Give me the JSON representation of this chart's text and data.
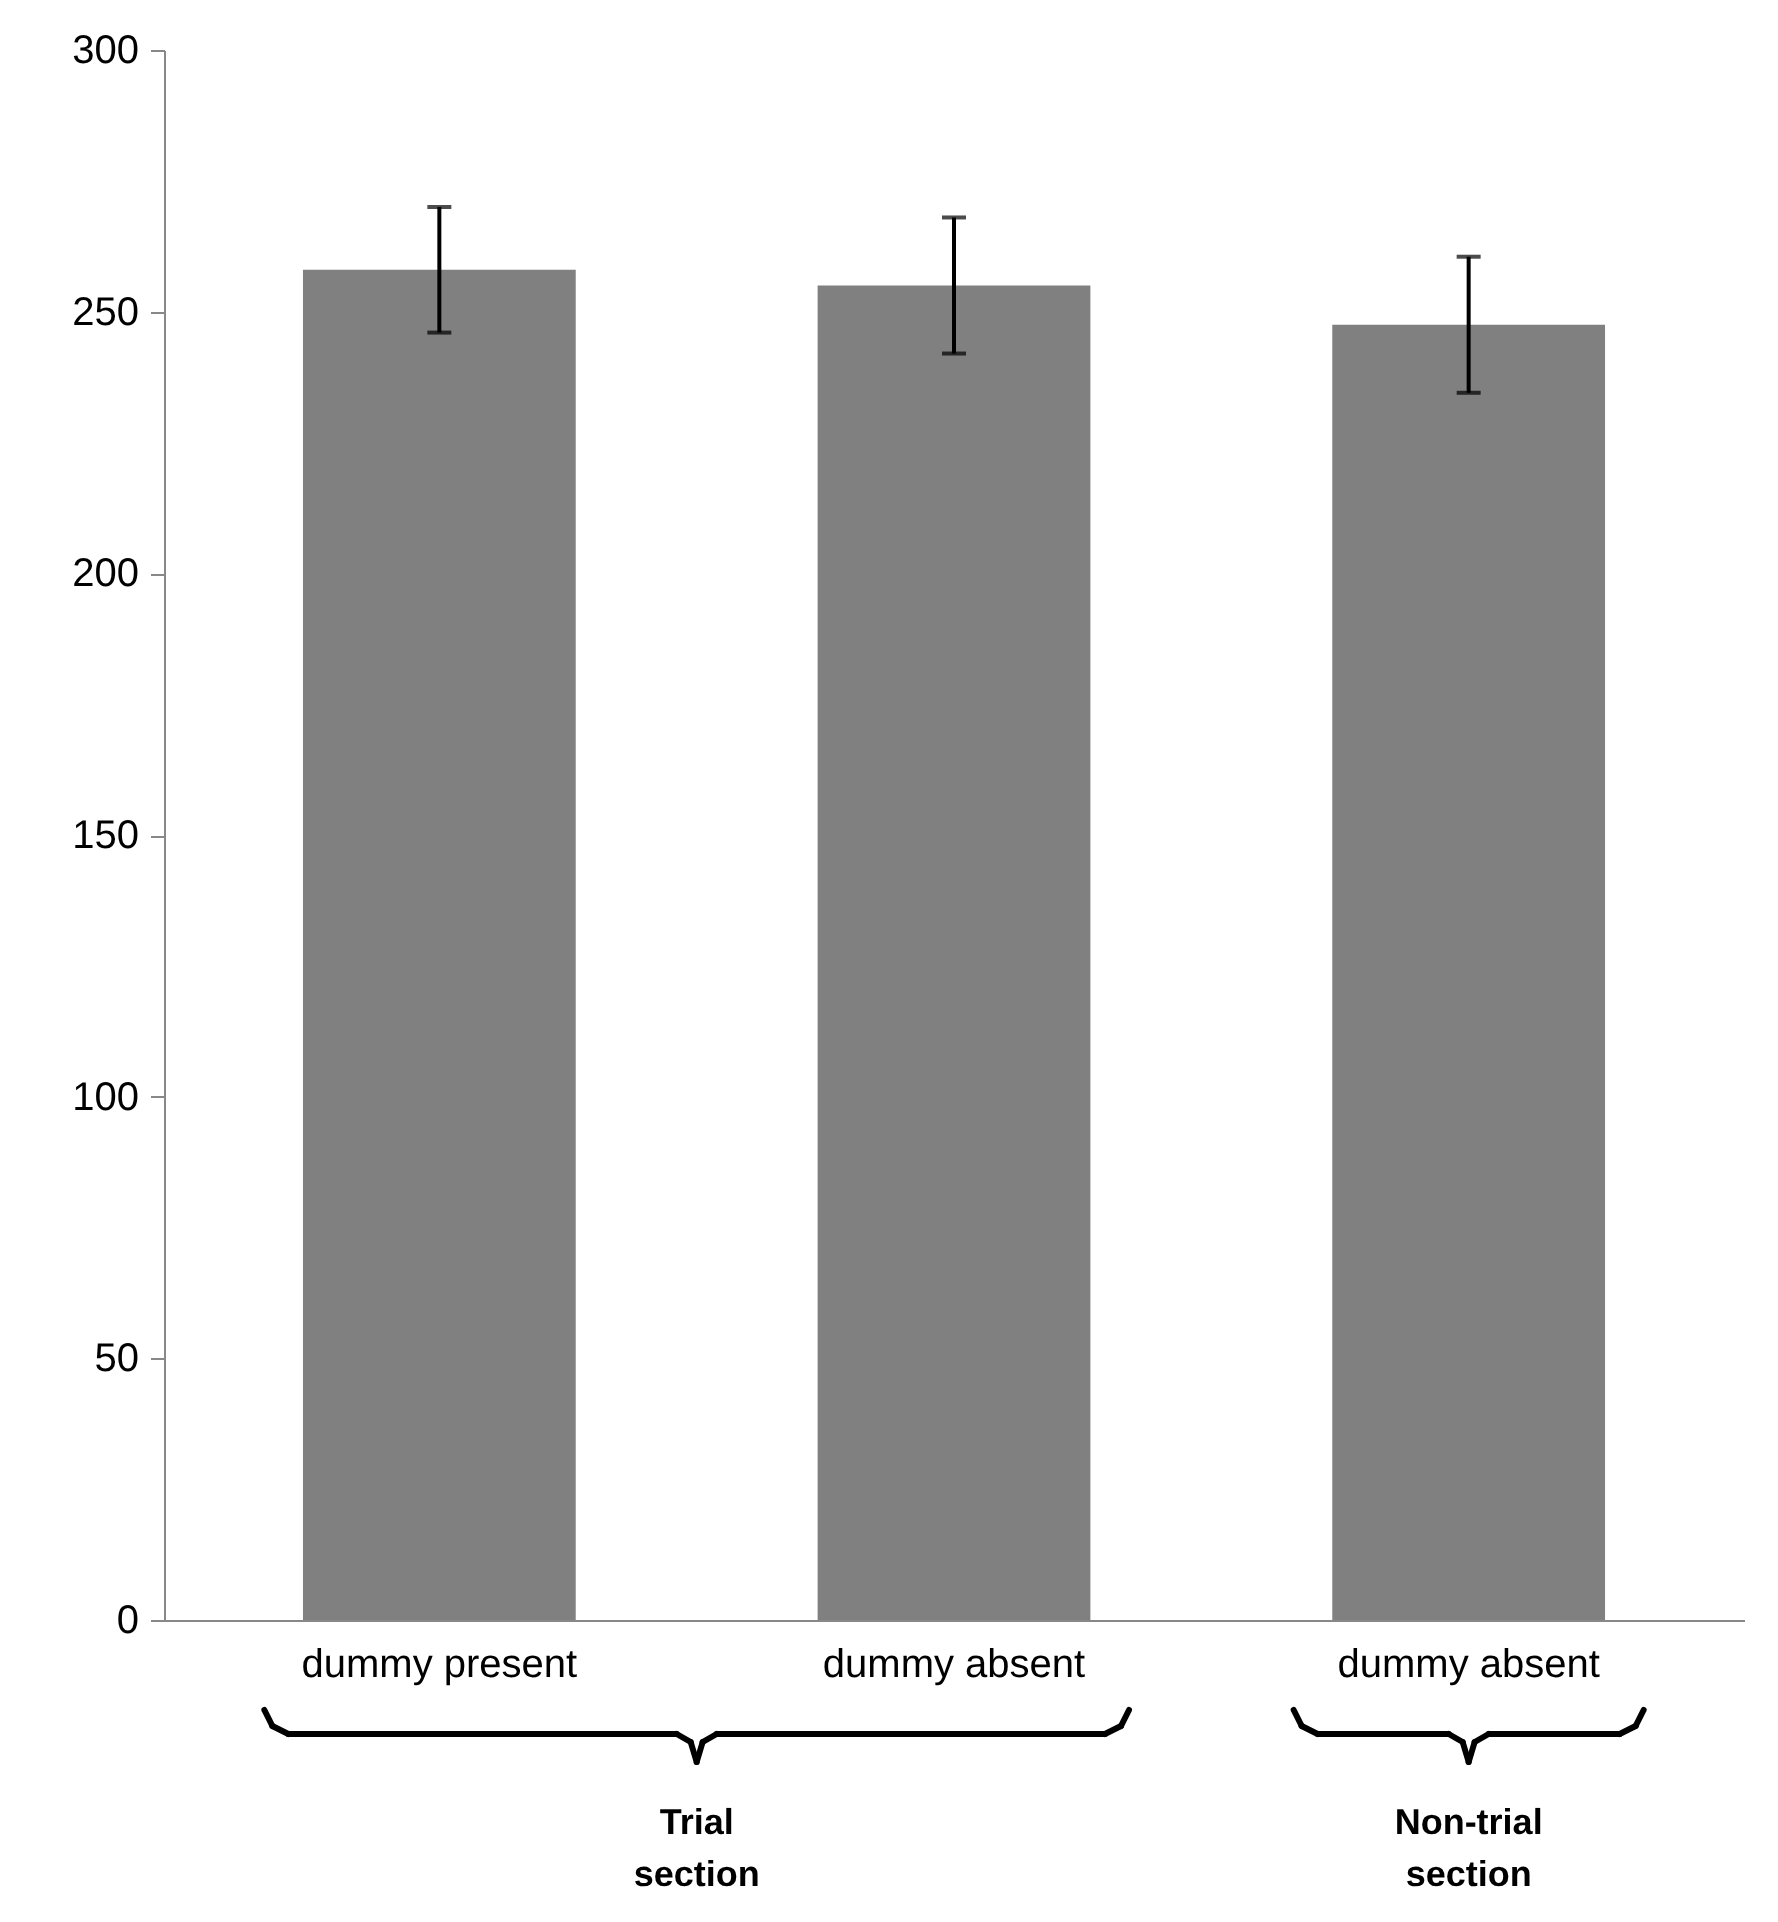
{
  "chart_data": {
    "type": "bar",
    "categories": [
      "dummy present",
      "dummy absent",
      "dummy absent"
    ],
    "values": [
      258,
      255,
      247.5
    ],
    "errors": [
      12,
      13,
      13
    ],
    "color": "#808080",
    "ylim": [
      0,
      300
    ],
    "yticks": [
      0,
      50,
      100,
      150,
      200,
      250,
      300
    ],
    "grid": false,
    "annotations": [
      "Trial section",
      "Non-trial section"
    ]
  }
}
